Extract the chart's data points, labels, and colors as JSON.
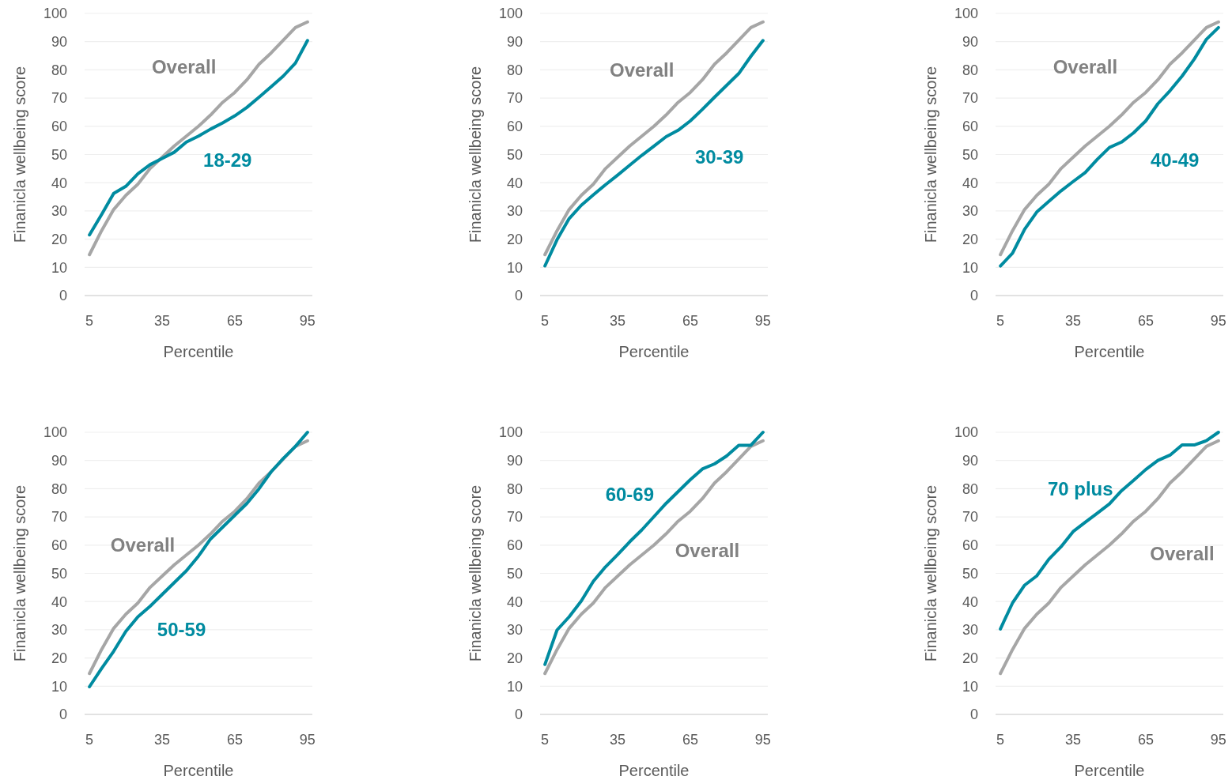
{
  "chart_data": [
    {
      "type": "line",
      "xlabel": "Percentile",
      "ylabel": "Finanicla wellbeing score",
      "x": [
        5,
        10,
        15,
        20,
        25,
        30,
        35,
        40,
        45,
        50,
        55,
        60,
        65,
        70,
        75,
        80,
        85,
        90,
        95
      ],
      "xlim": [
        3,
        97
      ],
      "xticks": [
        5,
        35,
        65,
        95
      ],
      "ylim": [
        0,
        100
      ],
      "yticks": [
        0,
        10,
        20,
        30,
        40,
        50,
        60,
        70,
        80,
        90,
        100
      ],
      "grid": "y",
      "legend": false,
      "line_style": "solid",
      "series": [
        {
          "name": "Overall",
          "color": "#a6a6a6",
          "values": [
            14.5,
            23,
            30.5,
            35.5,
            39.5,
            45,
            49,
            53,
            56.5,
            60,
            64,
            68.5,
            72,
            76.5,
            82,
            86,
            90.5,
            95,
            97
          ]
        },
        {
          "name": "18-29",
          "color": "#008ba0",
          "values": [
            21.5,
            28.7,
            36.2,
            38.7,
            43.2,
            46.4,
            48.6,
            50.8,
            54.4,
            56.5,
            59,
            61.2,
            63.7,
            66.7,
            70.3,
            74,
            77.8,
            82.4,
            90.4
          ]
        }
      ]
    },
    {
      "type": "line",
      "xlabel": "Percentile",
      "ylabel": "Finanicla wellbeing score",
      "x": [
        5,
        10,
        15,
        20,
        25,
        30,
        35,
        40,
        45,
        50,
        55,
        60,
        65,
        70,
        75,
        80,
        85,
        90,
        95
      ],
      "xlim": [
        3,
        97
      ],
      "xticks": [
        5,
        35,
        65,
        95
      ],
      "ylim": [
        0,
        100
      ],
      "yticks": [
        0,
        10,
        20,
        30,
        40,
        50,
        60,
        70,
        80,
        90,
        100
      ],
      "grid": "y",
      "legend": false,
      "line_style": "solid",
      "series": [
        {
          "name": "Overall",
          "color": "#a6a6a6",
          "values": [
            14.5,
            23,
            30.5,
            35.5,
            39.5,
            45,
            49,
            53,
            56.5,
            60,
            64,
            68.5,
            72,
            76.5,
            82,
            86,
            90.5,
            95,
            97
          ]
        },
        {
          "name": "30-39",
          "color": "#008ba0",
          "values": [
            10.5,
            19.8,
            27.3,
            32,
            35.7,
            39.3,
            42.7,
            46.2,
            49.7,
            53,
            56.3,
            58.6,
            61.9,
            66,
            70.3,
            74.5,
            78.7,
            84.8,
            90.4
          ]
        }
      ]
    },
    {
      "type": "line",
      "xlabel": "Percentile",
      "ylabel": "Finanicla wellbeing score",
      "x": [
        5,
        10,
        15,
        20,
        25,
        30,
        35,
        40,
        45,
        50,
        55,
        60,
        65,
        70,
        75,
        80,
        85,
        90,
        95
      ],
      "xlim": [
        3,
        97
      ],
      "xticks": [
        5,
        35,
        65,
        95
      ],
      "ylim": [
        0,
        100
      ],
      "yticks": [
        0,
        10,
        20,
        30,
        40,
        50,
        60,
        70,
        80,
        90,
        100
      ],
      "grid": "y",
      "legend": false,
      "line_style": "solid",
      "series": [
        {
          "name": "Overall",
          "color": "#a6a6a6",
          "values": [
            14.5,
            23,
            30.5,
            35.5,
            39.5,
            45,
            49,
            53,
            56.5,
            60,
            64,
            68.5,
            72,
            76.5,
            82,
            86,
            90.5,
            95,
            97
          ]
        },
        {
          "name": "40-49",
          "color": "#008ba0",
          "values": [
            10.5,
            15,
            23.5,
            29.6,
            33.4,
            37.1,
            40.4,
            43.6,
            48.3,
            52.5,
            54.4,
            57.7,
            61.9,
            68,
            72.6,
            77.8,
            83.8,
            90.8,
            95
          ]
        }
      ]
    },
    {
      "type": "line",
      "xlabel": "Percentile",
      "ylabel": "Finanicla wellbeing score",
      "x": [
        5,
        10,
        15,
        20,
        25,
        30,
        35,
        40,
        45,
        50,
        55,
        60,
        65,
        70,
        75,
        80,
        85,
        90,
        95
      ],
      "xlim": [
        3,
        97
      ],
      "xticks": [
        5,
        35,
        65,
        95
      ],
      "ylim": [
        0,
        100
      ],
      "yticks": [
        0,
        10,
        20,
        30,
        40,
        50,
        60,
        70,
        80,
        90,
        100
      ],
      "grid": "y",
      "legend": false,
      "line_style": "solid",
      "series": [
        {
          "name": "Overall",
          "color": "#a6a6a6",
          "values": [
            14.5,
            23,
            30.5,
            35.5,
            39.5,
            45,
            49,
            53,
            56.5,
            60,
            64,
            68.5,
            72,
            76.5,
            82,
            86,
            90.5,
            95,
            97
          ]
        },
        {
          "name": "50-59",
          "color": "#008ba0",
          "values": [
            9.8,
            16.3,
            22.4,
            29.4,
            34.6,
            38.3,
            42.5,
            46.7,
            50.9,
            56.1,
            62.2,
            66.4,
            70.6,
            74.8,
            80,
            86,
            90.7,
            95,
            100
          ]
        }
      ]
    },
    {
      "type": "line",
      "xlabel": "Percentile",
      "ylabel": "Finanicla wellbeing score",
      "x": [
        5,
        10,
        15,
        20,
        25,
        30,
        35,
        40,
        45,
        50,
        55,
        60,
        65,
        70,
        75,
        80,
        85,
        90,
        95
      ],
      "xlim": [
        3,
        97
      ],
      "xticks": [
        5,
        35,
        65,
        95
      ],
      "ylim": [
        0,
        100
      ],
      "yticks": [
        0,
        10,
        20,
        30,
        40,
        50,
        60,
        70,
        80,
        90,
        100
      ],
      "grid": "y",
      "legend": false,
      "line_style": "solid",
      "series": [
        {
          "name": "Overall",
          "color": "#a6a6a6",
          "values": [
            14.5,
            23,
            30.5,
            35.5,
            39.5,
            45,
            49,
            53,
            56.5,
            60,
            64,
            68.5,
            72,
            76.5,
            82,
            86,
            90.5,
            95,
            97
          ]
        },
        {
          "name": "60-69",
          "color": "#008ba0",
          "values": [
            17.7,
            29.9,
            34.6,
            40.2,
            47.2,
            52.3,
            56.6,
            61.2,
            65.4,
            70.1,
            74.8,
            79,
            83.2,
            87,
            88.8,
            91.6,
            95.4,
            95.4,
            100
          ]
        }
      ]
    },
    {
      "type": "line",
      "xlabel": "Percentile",
      "ylabel": "Finanicla wellbeing score",
      "x": [
        5,
        10,
        15,
        20,
        25,
        30,
        35,
        40,
        45,
        50,
        55,
        60,
        65,
        70,
        75,
        80,
        85,
        90,
        95
      ],
      "xlim": [
        3,
        97
      ],
      "xticks": [
        5,
        35,
        65,
        95
      ],
      "ylim": [
        0,
        100
      ],
      "yticks": [
        0,
        10,
        20,
        30,
        40,
        50,
        60,
        70,
        80,
        90,
        100
      ],
      "grid": "y",
      "legend": false,
      "line_style": "solid",
      "series": [
        {
          "name": "Overall",
          "color": "#a6a6a6",
          "values": [
            14.5,
            23,
            30.5,
            35.5,
            39.5,
            45,
            49,
            53,
            56.5,
            60,
            64,
            68.5,
            72,
            76.5,
            82,
            86,
            90.5,
            95,
            97
          ]
        },
        {
          "name": "70 plus",
          "color": "#008ba0",
          "values": [
            30.3,
            39.5,
            45.8,
            49.1,
            55,
            59.4,
            64.8,
            68.1,
            71.3,
            74.6,
            79.3,
            83,
            86.8,
            90,
            91.9,
            95.5,
            95.5,
            97,
            100
          ]
        }
      ]
    }
  ]
}
